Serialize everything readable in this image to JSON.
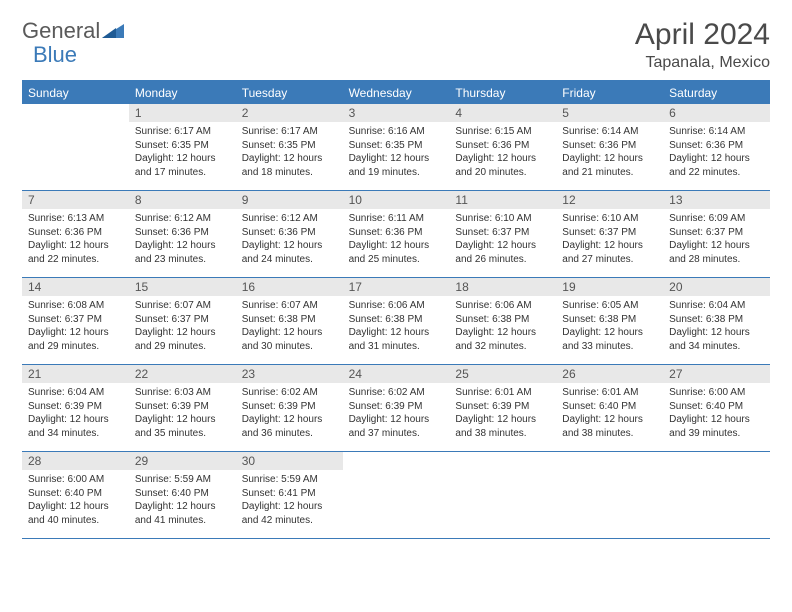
{
  "logo": {
    "text1": "General",
    "text2": "Blue"
  },
  "title": "April 2024",
  "location": "Tapanala, Mexico",
  "colors": {
    "accent": "#3b7ab8",
    "header_bg": "#3b7ab8",
    "header_fg": "#ffffff",
    "daynum_bg": "#e8e8e8",
    "body_bg": "#ffffff",
    "text": "#333333"
  },
  "day_labels": [
    "Sunday",
    "Monday",
    "Tuesday",
    "Wednesday",
    "Thursday",
    "Friday",
    "Saturday"
  ],
  "weeks": [
    [
      {
        "day": "",
        "sunrise": "",
        "sunset": "",
        "daylight": ""
      },
      {
        "day": "1",
        "sunrise": "Sunrise: 6:17 AM",
        "sunset": "Sunset: 6:35 PM",
        "daylight": "Daylight: 12 hours and 17 minutes."
      },
      {
        "day": "2",
        "sunrise": "Sunrise: 6:17 AM",
        "sunset": "Sunset: 6:35 PM",
        "daylight": "Daylight: 12 hours and 18 minutes."
      },
      {
        "day": "3",
        "sunrise": "Sunrise: 6:16 AM",
        "sunset": "Sunset: 6:35 PM",
        "daylight": "Daylight: 12 hours and 19 minutes."
      },
      {
        "day": "4",
        "sunrise": "Sunrise: 6:15 AM",
        "sunset": "Sunset: 6:36 PM",
        "daylight": "Daylight: 12 hours and 20 minutes."
      },
      {
        "day": "5",
        "sunrise": "Sunrise: 6:14 AM",
        "sunset": "Sunset: 6:36 PM",
        "daylight": "Daylight: 12 hours and 21 minutes."
      },
      {
        "day": "6",
        "sunrise": "Sunrise: 6:14 AM",
        "sunset": "Sunset: 6:36 PM",
        "daylight": "Daylight: 12 hours and 22 minutes."
      }
    ],
    [
      {
        "day": "7",
        "sunrise": "Sunrise: 6:13 AM",
        "sunset": "Sunset: 6:36 PM",
        "daylight": "Daylight: 12 hours and 22 minutes."
      },
      {
        "day": "8",
        "sunrise": "Sunrise: 6:12 AM",
        "sunset": "Sunset: 6:36 PM",
        "daylight": "Daylight: 12 hours and 23 minutes."
      },
      {
        "day": "9",
        "sunrise": "Sunrise: 6:12 AM",
        "sunset": "Sunset: 6:36 PM",
        "daylight": "Daylight: 12 hours and 24 minutes."
      },
      {
        "day": "10",
        "sunrise": "Sunrise: 6:11 AM",
        "sunset": "Sunset: 6:36 PM",
        "daylight": "Daylight: 12 hours and 25 minutes."
      },
      {
        "day": "11",
        "sunrise": "Sunrise: 6:10 AM",
        "sunset": "Sunset: 6:37 PM",
        "daylight": "Daylight: 12 hours and 26 minutes."
      },
      {
        "day": "12",
        "sunrise": "Sunrise: 6:10 AM",
        "sunset": "Sunset: 6:37 PM",
        "daylight": "Daylight: 12 hours and 27 minutes."
      },
      {
        "day": "13",
        "sunrise": "Sunrise: 6:09 AM",
        "sunset": "Sunset: 6:37 PM",
        "daylight": "Daylight: 12 hours and 28 minutes."
      }
    ],
    [
      {
        "day": "14",
        "sunrise": "Sunrise: 6:08 AM",
        "sunset": "Sunset: 6:37 PM",
        "daylight": "Daylight: 12 hours and 29 minutes."
      },
      {
        "day": "15",
        "sunrise": "Sunrise: 6:07 AM",
        "sunset": "Sunset: 6:37 PM",
        "daylight": "Daylight: 12 hours and 29 minutes."
      },
      {
        "day": "16",
        "sunrise": "Sunrise: 6:07 AM",
        "sunset": "Sunset: 6:38 PM",
        "daylight": "Daylight: 12 hours and 30 minutes."
      },
      {
        "day": "17",
        "sunrise": "Sunrise: 6:06 AM",
        "sunset": "Sunset: 6:38 PM",
        "daylight": "Daylight: 12 hours and 31 minutes."
      },
      {
        "day": "18",
        "sunrise": "Sunrise: 6:06 AM",
        "sunset": "Sunset: 6:38 PM",
        "daylight": "Daylight: 12 hours and 32 minutes."
      },
      {
        "day": "19",
        "sunrise": "Sunrise: 6:05 AM",
        "sunset": "Sunset: 6:38 PM",
        "daylight": "Daylight: 12 hours and 33 minutes."
      },
      {
        "day": "20",
        "sunrise": "Sunrise: 6:04 AM",
        "sunset": "Sunset: 6:38 PM",
        "daylight": "Daylight: 12 hours and 34 minutes."
      }
    ],
    [
      {
        "day": "21",
        "sunrise": "Sunrise: 6:04 AM",
        "sunset": "Sunset: 6:39 PM",
        "daylight": "Daylight: 12 hours and 34 minutes."
      },
      {
        "day": "22",
        "sunrise": "Sunrise: 6:03 AM",
        "sunset": "Sunset: 6:39 PM",
        "daylight": "Daylight: 12 hours and 35 minutes."
      },
      {
        "day": "23",
        "sunrise": "Sunrise: 6:02 AM",
        "sunset": "Sunset: 6:39 PM",
        "daylight": "Daylight: 12 hours and 36 minutes."
      },
      {
        "day": "24",
        "sunrise": "Sunrise: 6:02 AM",
        "sunset": "Sunset: 6:39 PM",
        "daylight": "Daylight: 12 hours and 37 minutes."
      },
      {
        "day": "25",
        "sunrise": "Sunrise: 6:01 AM",
        "sunset": "Sunset: 6:39 PM",
        "daylight": "Daylight: 12 hours and 38 minutes."
      },
      {
        "day": "26",
        "sunrise": "Sunrise: 6:01 AM",
        "sunset": "Sunset: 6:40 PM",
        "daylight": "Daylight: 12 hours and 38 minutes."
      },
      {
        "day": "27",
        "sunrise": "Sunrise: 6:00 AM",
        "sunset": "Sunset: 6:40 PM",
        "daylight": "Daylight: 12 hours and 39 minutes."
      }
    ],
    [
      {
        "day": "28",
        "sunrise": "Sunrise: 6:00 AM",
        "sunset": "Sunset: 6:40 PM",
        "daylight": "Daylight: 12 hours and 40 minutes."
      },
      {
        "day": "29",
        "sunrise": "Sunrise: 5:59 AM",
        "sunset": "Sunset: 6:40 PM",
        "daylight": "Daylight: 12 hours and 41 minutes."
      },
      {
        "day": "30",
        "sunrise": "Sunrise: 5:59 AM",
        "sunset": "Sunset: 6:41 PM",
        "daylight": "Daylight: 12 hours and 42 minutes."
      },
      {
        "day": "",
        "sunrise": "",
        "sunset": "",
        "daylight": ""
      },
      {
        "day": "",
        "sunrise": "",
        "sunset": "",
        "daylight": ""
      },
      {
        "day": "",
        "sunrise": "",
        "sunset": "",
        "daylight": ""
      },
      {
        "day": "",
        "sunrise": "",
        "sunset": "",
        "daylight": ""
      }
    ]
  ]
}
